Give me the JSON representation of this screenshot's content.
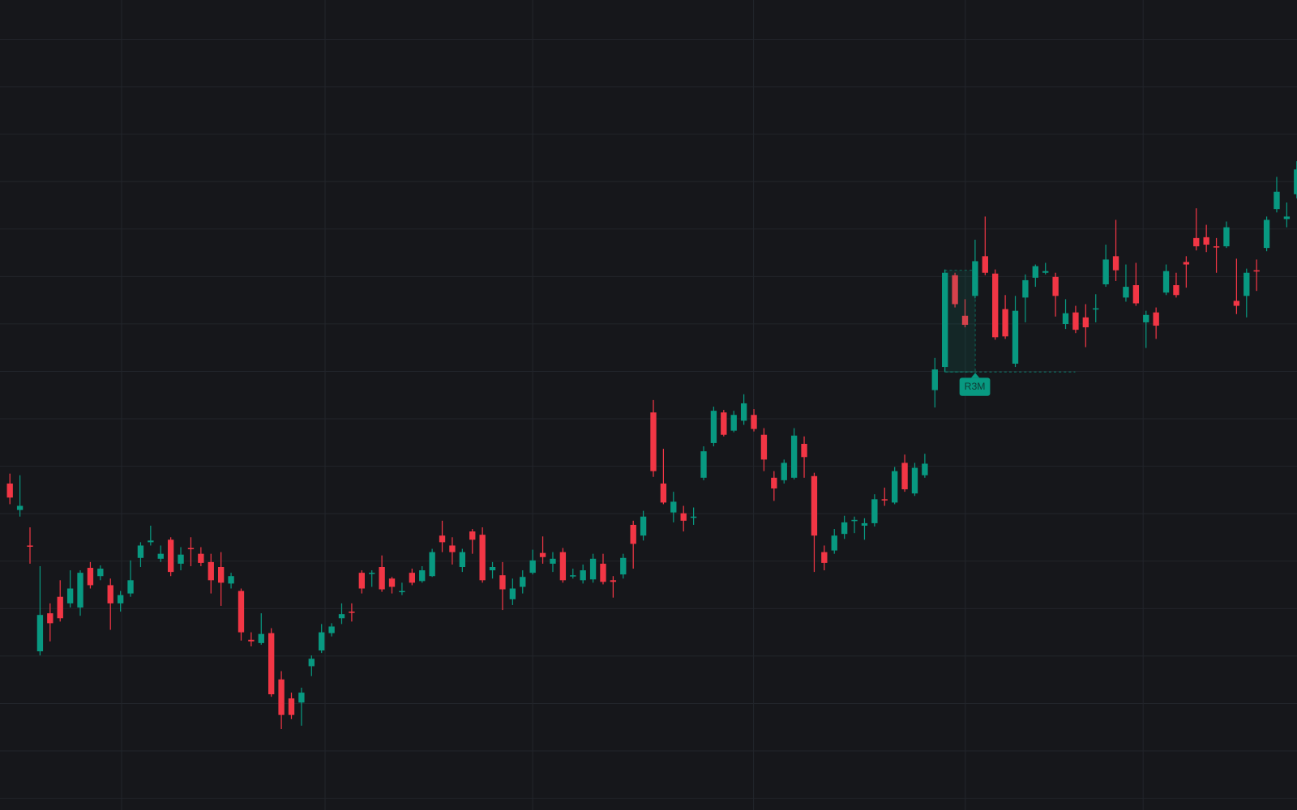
{
  "chart_data": {
    "type": "candlestick",
    "up_color": "#089981",
    "down_color": "#f23645",
    "ylim": [
      20,
      1000
    ],
    "annotation": "R3M",
    "ohlc": [
      [
        415,
        427,
        390,
        398
      ],
      [
        383,
        425,
        375,
        388
      ],
      [
        340,
        362,
        318,
        339
      ],
      [
        212,
        315,
        207,
        256
      ],
      [
        258,
        270,
        224,
        246
      ],
      [
        278,
        298,
        248,
        252
      ],
      [
        270,
        310,
        265,
        288
      ],
      [
        265,
        310,
        255,
        307
      ],
      [
        313,
        320,
        288,
        292
      ],
      [
        303,
        316,
        298,
        312
      ],
      [
        292,
        300,
        238,
        270
      ],
      [
        270,
        285,
        260,
        280
      ],
      [
        282,
        322,
        278,
        298
      ],
      [
        325,
        344,
        314,
        340
      ],
      [
        344,
        364,
        340,
        346
      ],
      [
        324,
        340,
        320,
        330
      ],
      [
        347,
        350,
        303,
        308
      ],
      [
        318,
        338,
        310,
        329
      ],
      [
        337,
        350,
        315,
        336
      ],
      [
        330,
        338,
        315,
        319
      ],
      [
        320,
        330,
        282,
        298
      ],
      [
        314,
        332,
        267,
        295
      ],
      [
        294,
        307,
        288,
        303
      ],
      [
        285,
        288,
        225,
        235
      ],
      [
        226,
        235,
        218,
        224
      ],
      [
        222,
        258,
        220,
        233
      ],
      [
        234,
        240,
        157,
        160
      ],
      [
        178,
        188,
        118,
        135
      ],
      [
        155,
        162,
        130,
        135
      ],
      [
        150,
        168,
        122,
        162
      ],
      [
        194,
        207,
        182,
        203
      ],
      [
        213,
        245,
        210,
        235
      ],
      [
        234,
        246,
        230,
        242
      ],
      [
        252,
        270,
        245,
        257
      ],
      [
        260,
        270,
        248,
        259
      ],
      [
        307,
        310,
        282,
        288
      ],
      [
        306,
        310,
        290,
        307
      ],
      [
        314,
        328,
        284,
        287
      ],
      [
        300,
        302,
        282,
        290
      ],
      [
        284,
        295,
        280,
        285
      ],
      [
        307,
        312,
        292,
        295
      ],
      [
        297,
        315,
        295,
        310
      ],
      [
        303,
        336,
        302,
        332
      ],
      [
        352,
        370,
        332,
        344
      ],
      [
        340,
        350,
        317,
        332
      ],
      [
        314,
        336,
        308,
        332
      ],
      [
        357,
        360,
        330,
        347
      ],
      [
        353,
        362,
        295,
        298
      ],
      [
        310,
        320,
        300,
        314
      ],
      [
        304,
        320,
        262,
        287
      ],
      [
        275,
        300,
        268,
        288
      ],
      [
        290,
        310,
        282,
        302
      ],
      [
        307,
        335,
        305,
        322
      ],
      [
        331,
        351,
        318,
        326
      ],
      [
        318,
        332,
        308,
        324
      ],
      [
        332,
        337,
        295,
        298
      ],
      [
        303,
        312,
        300,
        304
      ],
      [
        298,
        317,
        294,
        310
      ],
      [
        299,
        330,
        295,
        324
      ],
      [
        318,
        330,
        293,
        296
      ],
      [
        298,
        303,
        277,
        296
      ],
      [
        305,
        330,
        300,
        325
      ],
      [
        365,
        370,
        312,
        342
      ],
      [
        352,
        382,
        346,
        375
      ],
      [
        501,
        516,
        423,
        430
      ],
      [
        415,
        457,
        390,
        392
      ],
      [
        380,
        405,
        368,
        393
      ],
      [
        379,
        388,
        357,
        370
      ],
      [
        374,
        386,
        365,
        375
      ],
      [
        422,
        460,
        419,
        454
      ],
      [
        464,
        508,
        460,
        503
      ],
      [
        501,
        504,
        472,
        474
      ],
      [
        479,
        503,
        477,
        498
      ],
      [
        491,
        523,
        486,
        512
      ],
      [
        498,
        505,
        478,
        481
      ],
      [
        474,
        482,
        430,
        444
      ],
      [
        422,
        430,
        394,
        409
      ],
      [
        419,
        444,
        415,
        440
      ],
      [
        422,
        482,
        420,
        473
      ],
      [
        463,
        472,
        422,
        447
      ],
      [
        424,
        428,
        308,
        352
      ],
      [
        332,
        340,
        310,
        319
      ],
      [
        334,
        360,
        330,
        352
      ],
      [
        354,
        376,
        348,
        368
      ],
      [
        370,
        375,
        355,
        371
      ],
      [
        364,
        373,
        347,
        367
      ],
      [
        367,
        402,
        363,
        396
      ],
      [
        396,
        410,
        388,
        395
      ],
      [
        392,
        435,
        390,
        430
      ],
      [
        440,
        450,
        405,
        408
      ],
      [
        403,
        440,
        400,
        434
      ],
      [
        425,
        451,
        422,
        439
      ],
      [
        528,
        567,
        507,
        553
      ],
      [
        556,
        674,
        550,
        670
      ],
      [
        667,
        670,
        628,
        632
      ],
      [
        618,
        638,
        604,
        607
      ],
      [
        642,
        710,
        639,
        684
      ],
      [
        690,
        738,
        667,
        670
      ],
      [
        669,
        674,
        589,
        592
      ],
      [
        626,
        643,
        590,
        593
      ],
      [
        560,
        642,
        556,
        624
      ],
      [
        640,
        668,
        610,
        661
      ],
      [
        664,
        680,
        653,
        678
      ],
      [
        670,
        682,
        668,
        672
      ],
      [
        665,
        670,
        617,
        642
      ],
      [
        608,
        638,
        602,
        621
      ],
      [
        622,
        630,
        597,
        601
      ],
      [
        616,
        632,
        580,
        604
      ],
      [
        626,
        644,
        610,
        627
      ],
      [
        656,
        704,
        653,
        686
      ],
      [
        690,
        734,
        660,
        673
      ],
      [
        640,
        680,
        635,
        653
      ],
      [
        655,
        682,
        630,
        633
      ],
      [
        610,
        624,
        579,
        619
      ],
      [
        622,
        628,
        590,
        606
      ],
      [
        646,
        680,
        643,
        672
      ],
      [
        655,
        670,
        640,
        643
      ],
      [
        683,
        690,
        652,
        680
      ],
      [
        712,
        748,
        697,
        702
      ],
      [
        713,
        728,
        695,
        704
      ],
      [
        702,
        712,
        670,
        701
      ],
      [
        702,
        732,
        700,
        725
      ],
      [
        636,
        687,
        620,
        630
      ],
      [
        642,
        675,
        616,
        670
      ],
      [
        673,
        686,
        648,
        672
      ],
      [
        700,
        738,
        696,
        734
      ],
      [
        747,
        786,
        743,
        768
      ],
      [
        735,
        755,
        725,
        738
      ],
      [
        765,
        805,
        760,
        795
      ]
    ]
  }
}
